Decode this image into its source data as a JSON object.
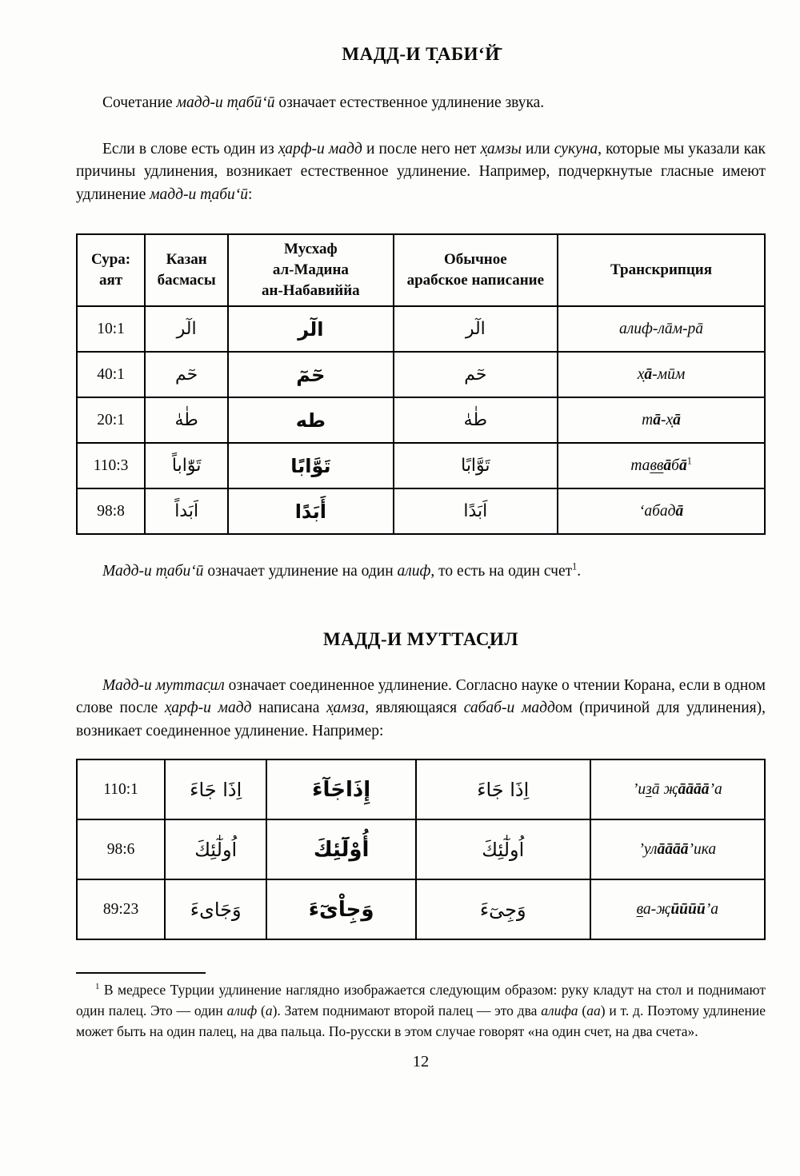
{
  "page": {
    "number": "12"
  },
  "section1": {
    "title": "МАДД-И Т̣АБИ‘Й̄",
    "para1": [
      {
        "t": "Сочетание ",
        "s": "n"
      },
      {
        "t": "мадд-и т̣абӣ‘ӣ",
        "s": "i"
      },
      {
        "t": " означает естественное удлинение звука.",
        "s": "n"
      }
    ],
    "para2": [
      {
        "t": "Если в слове есть один из ",
        "s": "n"
      },
      {
        "t": "х̣арф-и мадд",
        "s": "i"
      },
      {
        "t": " и после него нет ",
        "s": "n"
      },
      {
        "t": "х̣амзы",
        "s": "i"
      },
      {
        "t": " или ",
        "s": "n"
      },
      {
        "t": "сукуна",
        "s": "i"
      },
      {
        "t": ", которые мы указали как причины удлинения, возникает естественное удлинение. Например, подчеркнутые гласные имеют удлинение ",
        "s": "n"
      },
      {
        "t": "мадд-и т̣аби‘ӣ",
        "s": "i"
      },
      {
        "t": ":",
        "s": "n"
      }
    ],
    "para3": [
      {
        "t": "Мадд-и т̣аби‘ӣ",
        "s": "i"
      },
      {
        "t": " означает удлинение на один ",
        "s": "n"
      },
      {
        "t": "алиф",
        "s": "i"
      },
      {
        "t": ", то есть на один счет",
        "s": "n"
      },
      {
        "t": "1",
        "s": "sup"
      },
      {
        "t": ".",
        "s": "n"
      }
    ]
  },
  "table1": {
    "headers": [
      "Сура:\nаят",
      "Казан\nбасмасы",
      "Мусхаф\nал-Мадина\nан-Набавиййа",
      "Обычное\nарабское написание",
      "Транскрипция"
    ],
    "rows": [
      {
        "sura": "10:1",
        "kazan": "الٓر",
        "madina": "الٓر",
        "ordinary": "الٓر",
        "trans": [
          {
            "t": "алиф-лāм-рā",
            "s": "i"
          }
        ]
      },
      {
        "sura": "40:1",
        "kazan": "حٓم",
        "madina": "حٓمٓ",
        "ordinary": "حٓم",
        "trans": [
          {
            "t": "х̣",
            "s": "i"
          },
          {
            "t": "ā",
            "s": "b"
          },
          {
            "t": "-мӣм",
            "s": "i"
          }
        ]
      },
      {
        "sura": "20:1",
        "kazan": "طٰهٰ",
        "madina": "طه",
        "ordinary": "طٰهٰ",
        "trans": [
          {
            "t": "т",
            "s": "i"
          },
          {
            "t": "ā",
            "s": "b"
          },
          {
            "t": "-х̣",
            "s": "i"
          },
          {
            "t": "ā",
            "s": "b"
          }
        ]
      },
      {
        "sura": "110:3",
        "kazan": "تَوّٰاباً",
        "madina": "تَوَّابًا",
        "ordinary": "تَوَّابًا",
        "trans": [
          {
            "t": "та",
            "s": "i"
          },
          {
            "t": "вв",
            "s": "u"
          },
          {
            "t": "ā",
            "s": "b"
          },
          {
            "t": "б",
            "s": "i"
          },
          {
            "t": "ā",
            "s": "b"
          },
          {
            "t": "1",
            "s": "sup"
          }
        ]
      },
      {
        "sura": "98:8",
        "kazan": "اَبَداً",
        "madina": "أَبَدًا",
        "ordinary": "اَبَدًا",
        "trans": [
          {
            "t": "‘абад",
            "s": "i"
          },
          {
            "t": "ā",
            "s": "b"
          }
        ]
      }
    ]
  },
  "section2": {
    "title": "МАДД-И МУТТАС̣ИЛ",
    "para1": [
      {
        "t": "Мадд-и муттас̣ил",
        "s": "i"
      },
      {
        "t": " означает соединенное удлинение. Согласно науке о чтении Корана, если в одном слове после ",
        "s": "n"
      },
      {
        "t": "х̣арф-и мадд",
        "s": "i"
      },
      {
        "t": " написана ",
        "s": "n"
      },
      {
        "t": "х̣амза",
        "s": "i"
      },
      {
        "t": ", являющаяся ",
        "s": "n"
      },
      {
        "t": "сабаб-и мадд",
        "s": "i"
      },
      {
        "t": "ом (причиной для удлинения), возникает соединенное удлинение. Например:",
        "s": "n"
      }
    ]
  },
  "table2": {
    "rows": [
      {
        "sura": "110:1",
        "kazan": "اِذَا جَاءَ",
        "madina": "إِذَاجَآءَ",
        "ordinary": "اِذَا جَاءَ",
        "trans": [
          {
            "t": "’и",
            "s": "i"
          },
          {
            "t": "з",
            "s": "u"
          },
          {
            "t": "ā җ",
            "s": "i"
          },
          {
            "t": "āāāā",
            "s": "b"
          },
          {
            "t": "’а",
            "s": "i"
          }
        ]
      },
      {
        "sura": "98:6",
        "kazan": "اُولٰٓئِكَ",
        "madina": "أُوْلَٓئِكَ",
        "ordinary": "اُولٰٓئِكَ",
        "trans": [
          {
            "t": "’ул",
            "s": "i"
          },
          {
            "t": "āāāā",
            "s": "b"
          },
          {
            "t": "’ика",
            "s": "i"
          }
        ]
      },
      {
        "sura": "89:23",
        "kazan": "وَجَاىءَ",
        "madina": "وَجِاْىٓءَ",
        "ordinary": "وَجِىٓءَ",
        "trans": [
          {
            "t": "в",
            "s": "u"
          },
          {
            "t": "а-җ",
            "s": "i"
          },
          {
            "t": "ӣӣӣӣ",
            "s": "b"
          },
          {
            "t": "’а",
            "s": "i"
          }
        ]
      }
    ]
  },
  "footnote": {
    "text": [
      {
        "t": "1",
        "s": "sup"
      },
      {
        "t": " В медресе Турции удлинение наглядно изображается следующим образом: руку кладут на стол и поднимают один палец. Это — один ",
        "s": "n"
      },
      {
        "t": "алиф",
        "s": "i"
      },
      {
        "t": " (",
        "s": "n"
      },
      {
        "t": "а",
        "s": "i"
      },
      {
        "t": "). Затем поднимают второй палец — это два ",
        "s": "n"
      },
      {
        "t": "алифа",
        "s": "i"
      },
      {
        "t": " (",
        "s": "n"
      },
      {
        "t": "аа",
        "s": "i"
      },
      {
        "t": ") и т. д. Поэтому удлинение может быть на один палец, на два пальца. По-русски в этом случае говорят «на один счет, на два счета».",
        "s": "n"
      }
    ]
  }
}
